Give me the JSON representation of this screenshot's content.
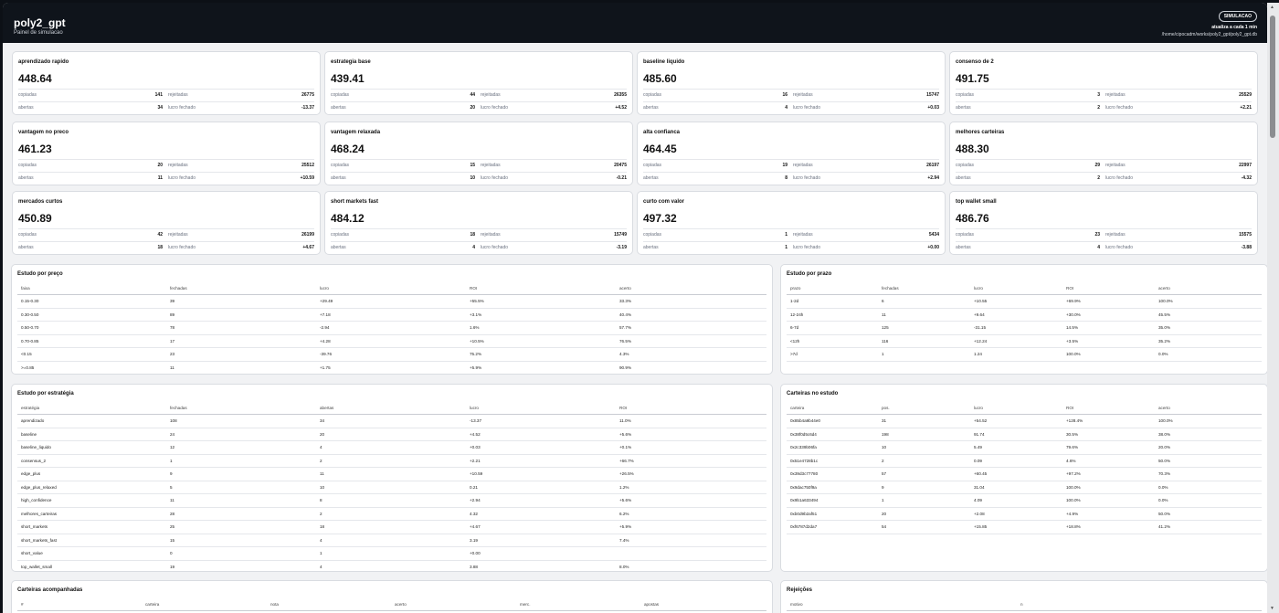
{
  "header": {
    "title": "poly2_gpt",
    "subtitle": "Painel de simulacao",
    "mode": "SIMULACAO",
    "refresh": "atualiza a cada 1 min",
    "path": "/home/cipocadm/works/poly2_gpt/poly2_gpt.db"
  },
  "labels": {
    "copied": "copiadas",
    "rejected": "rejeitadas",
    "open": "abertas",
    "closed_profit": "lucro fechado"
  },
  "strategies": [
    {
      "name": "aprendizado rapido",
      "value": "448.64",
      "copied": "141",
      "rejected": "26775",
      "open": "34",
      "profit": "-13.37"
    },
    {
      "name": "estrategia base",
      "value": "439.41",
      "copied": "44",
      "rejected": "26355",
      "open": "20",
      "profit": "+4.52"
    },
    {
      "name": "baseline liquido",
      "value": "485.60",
      "copied": "16",
      "rejected": "15747",
      "open": "4",
      "profit": "+0.03"
    },
    {
      "name": "consenso de 2",
      "value": "491.75",
      "copied": "3",
      "rejected": "25529",
      "open": "2",
      "profit": "+2.21"
    },
    {
      "name": "vantagem no preco",
      "value": "461.23",
      "copied": "20",
      "rejected": "25512",
      "open": "11",
      "profit": "+10.59"
    },
    {
      "name": "vantagem relaxada",
      "value": "468.24",
      "copied": "15",
      "rejected": "20475",
      "open": "10",
      "profit": "-0.21"
    },
    {
      "name": "alta confianca",
      "value": "464.45",
      "copied": "19",
      "rejected": "26197",
      "open": "8",
      "profit": "+2.94"
    },
    {
      "name": "melhores carteiras",
      "value": "488.30",
      "copied": "29",
      "rejected": "22997",
      "open": "2",
      "profit": "-4.32"
    },
    {
      "name": "mercados curtos",
      "value": "450.89",
      "copied": "42",
      "rejected": "26199",
      "open": "18",
      "profit": "+4.67"
    },
    {
      "name": "short markets fast",
      "value": "484.12",
      "copied": "18",
      "rejected": "15749",
      "open": "4",
      "profit": "-3.19"
    },
    {
      "name": "curto com valor",
      "value": "497.32",
      "copied": "1",
      "rejected": "5434",
      "open": "1",
      "profit": "+0.00"
    },
    {
      "name": "top wallet small",
      "value": "486.76",
      "copied": "23",
      "rejected": "15575",
      "open": "4",
      "profit": "-3.88"
    }
  ],
  "price_study": {
    "title": "Estudo por preço",
    "headers": [
      "faixa",
      "fechadas",
      "lucro",
      "ROI",
      "acerto"
    ],
    "rows": [
      [
        "0.15-0.30",
        "39",
        "+29.49",
        "+55.5%",
        "33.3%"
      ],
      [
        "0.30-0.50",
        "89",
        "+7.18",
        "+3.1%",
        "40.4%"
      ],
      [
        "0.50-0.70",
        "78",
        "-2.94",
        "1.6%",
        "57.7%"
      ],
      [
        "0.70-0.85",
        "17",
        "+4.28",
        "+10.5%",
        "76.5%"
      ],
      [
        "<0.15",
        "23",
        "-39.76",
        "75.2%",
        "4.3%"
      ],
      [
        ">=0.85",
        "11",
        "+1.75",
        "+5.9%",
        "90.9%"
      ]
    ]
  },
  "term_study": {
    "title": "Estudo por prazo",
    "headers": [
      "prazo",
      "fechadas",
      "lucro",
      "ROI",
      "acerto"
    ],
    "rows": [
      [
        "1-2d",
        "6",
        "+10.55",
        "+69.9%",
        "100.0%"
      ],
      [
        "12-24h",
        "11",
        "+9.64",
        "+30.0%",
        "45.5%"
      ],
      [
        "6-7d",
        "125",
        "-31.15",
        "14.5%",
        "35.0%"
      ],
      [
        "<12h",
        "116",
        "+12.24",
        "+3.5%",
        "35.2%"
      ],
      [
        ">7d",
        "1",
        "1.24",
        "100.0%",
        "0.0%"
      ]
    ]
  },
  "strategy_study": {
    "title": "Estudo por estratégia",
    "headers": [
      "estratégia",
      "fechadas",
      "abertas",
      "lucro",
      "ROI"
    ],
    "rows": [
      [
        "aprendizado",
        "108",
        "34",
        "-13.37",
        "11.0%"
      ],
      [
        "baseline",
        "24",
        "20",
        "+4.52",
        "+5.6%"
      ],
      [
        "baseline_liquido",
        "12",
        "4",
        "+0.03",
        "+0.1%"
      ],
      [
        "consensus_2",
        "1",
        "2",
        "+2.21",
        "+66.7%"
      ],
      [
        "edge_plus",
        "9",
        "11",
        "+10.59",
        "+26.5%"
      ],
      [
        "edge_plus_relaxed",
        "5",
        "10",
        "0.21",
        "1.2%"
      ],
      [
        "high_confidence",
        "11",
        "8",
        "+2.94",
        "+5.6%"
      ],
      [
        "melhores_carteiras",
        "28",
        "2",
        "4.32",
        "6.2%"
      ],
      [
        "short_markets",
        "25",
        "18",
        "+4.67",
        "+5.9%"
      ],
      [
        "short_markets_fast",
        "15",
        "4",
        "3.19",
        "7.4%"
      ],
      [
        "short_value",
        "0",
        "1",
        "+0.00",
        ""
      ],
      [
        "top_wallet_small",
        "19",
        "4",
        "3.88",
        "8.0%"
      ]
    ]
  },
  "wallets_study": {
    "title": "Carteiras no estudo",
    "headers": [
      "carteira",
      "pos.",
      "lucro",
      "ROI",
      "acerto"
    ],
    "rows": [
      [
        "0x85b4a9b44e0",
        "31",
        "+54.52",
        "+128.4%",
        "100.0%"
      ],
      [
        "0x38f0d5c6d4",
        "198",
        "91.74",
        "30.5%",
        "38.0%"
      ],
      [
        "0x2c339b06fa",
        "10",
        "5.49",
        "79.6%",
        "20.0%"
      ],
      [
        "0x51e4728b1c",
        "2",
        "0.09",
        "4.6%",
        "50.0%"
      ],
      [
        "0x39d3c77780",
        "57",
        "+60.45",
        "+97.2%",
        "70.3%"
      ],
      [
        "0x9dac750f9a",
        "9",
        "31.04",
        "100.0%",
        "0.0%"
      ],
      [
        "0x9b1a633494",
        "1",
        "4.09",
        "100.0%",
        "0.0%"
      ],
      [
        "0xb0d9b2af51",
        "20",
        "+2.08",
        "+4.9%",
        "50.0%"
      ],
      [
        "0xf6787d2da7",
        "54",
        "+15.85",
        "+18.8%",
        "41.2%"
      ]
    ]
  },
  "followed_wallets": {
    "title": "Carteiras acompanhadas",
    "headers": [
      "#",
      "carteira",
      "nota",
      "acerto",
      "merc.",
      "apostas"
    ]
  },
  "rejections": {
    "title": "Rejeições",
    "headers": [
      "motivo",
      "n"
    ]
  }
}
